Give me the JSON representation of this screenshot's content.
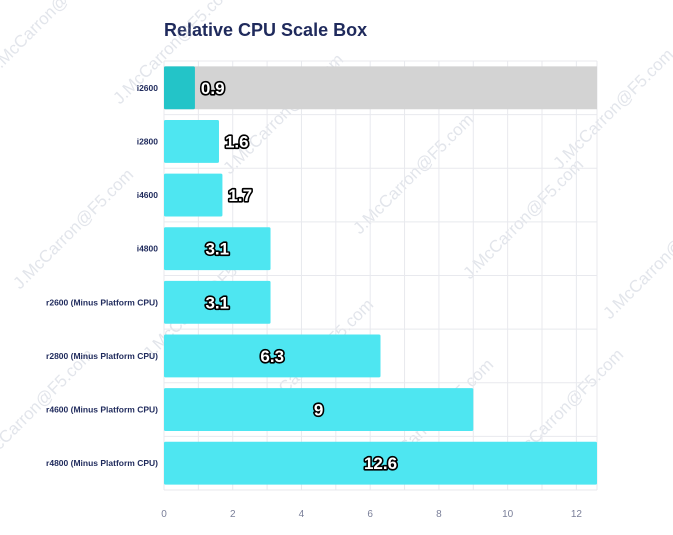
{
  "chart_data": {
    "type": "bar",
    "orientation": "horizontal",
    "title": "Relative CPU Scale Box",
    "xlabel": "",
    "ylabel": "",
    "categories": [
      "i2600",
      "i2800",
      "i4600",
      "i4800",
      "r2600 (Minus Platform CPU)",
      "r2800 (Minus Platform CPU)",
      "r4600 (Minus Platform CPU)",
      "r4800 (Minus Platform CPU)"
    ],
    "values": [
      0.9,
      1.6,
      1.7,
      3.1,
      3.1,
      6.3,
      9,
      12.6
    ],
    "data_labels": [
      "0.9",
      "1.6",
      "1.7",
      "3.1",
      "3.1",
      "6.3",
      "9",
      "12.6"
    ],
    "xlim": [
      0,
      12.6
    ],
    "xticks": [
      "0",
      "2",
      "4",
      "6",
      "8",
      "10",
      "12"
    ],
    "grid": true,
    "highlight_index": 0,
    "highlight_background": true,
    "watermark": "J.McCarron@F5.com",
    "colors": {
      "bar": "#4ee6f1",
      "highlight_bar": "#23c4c8",
      "highlight_background": "#d3d3d3",
      "grid": "#e8e9ee",
      "title": "#1f2a5c",
      "category_label": "#1f2a5c",
      "tick_label": "#7a7f99"
    }
  }
}
